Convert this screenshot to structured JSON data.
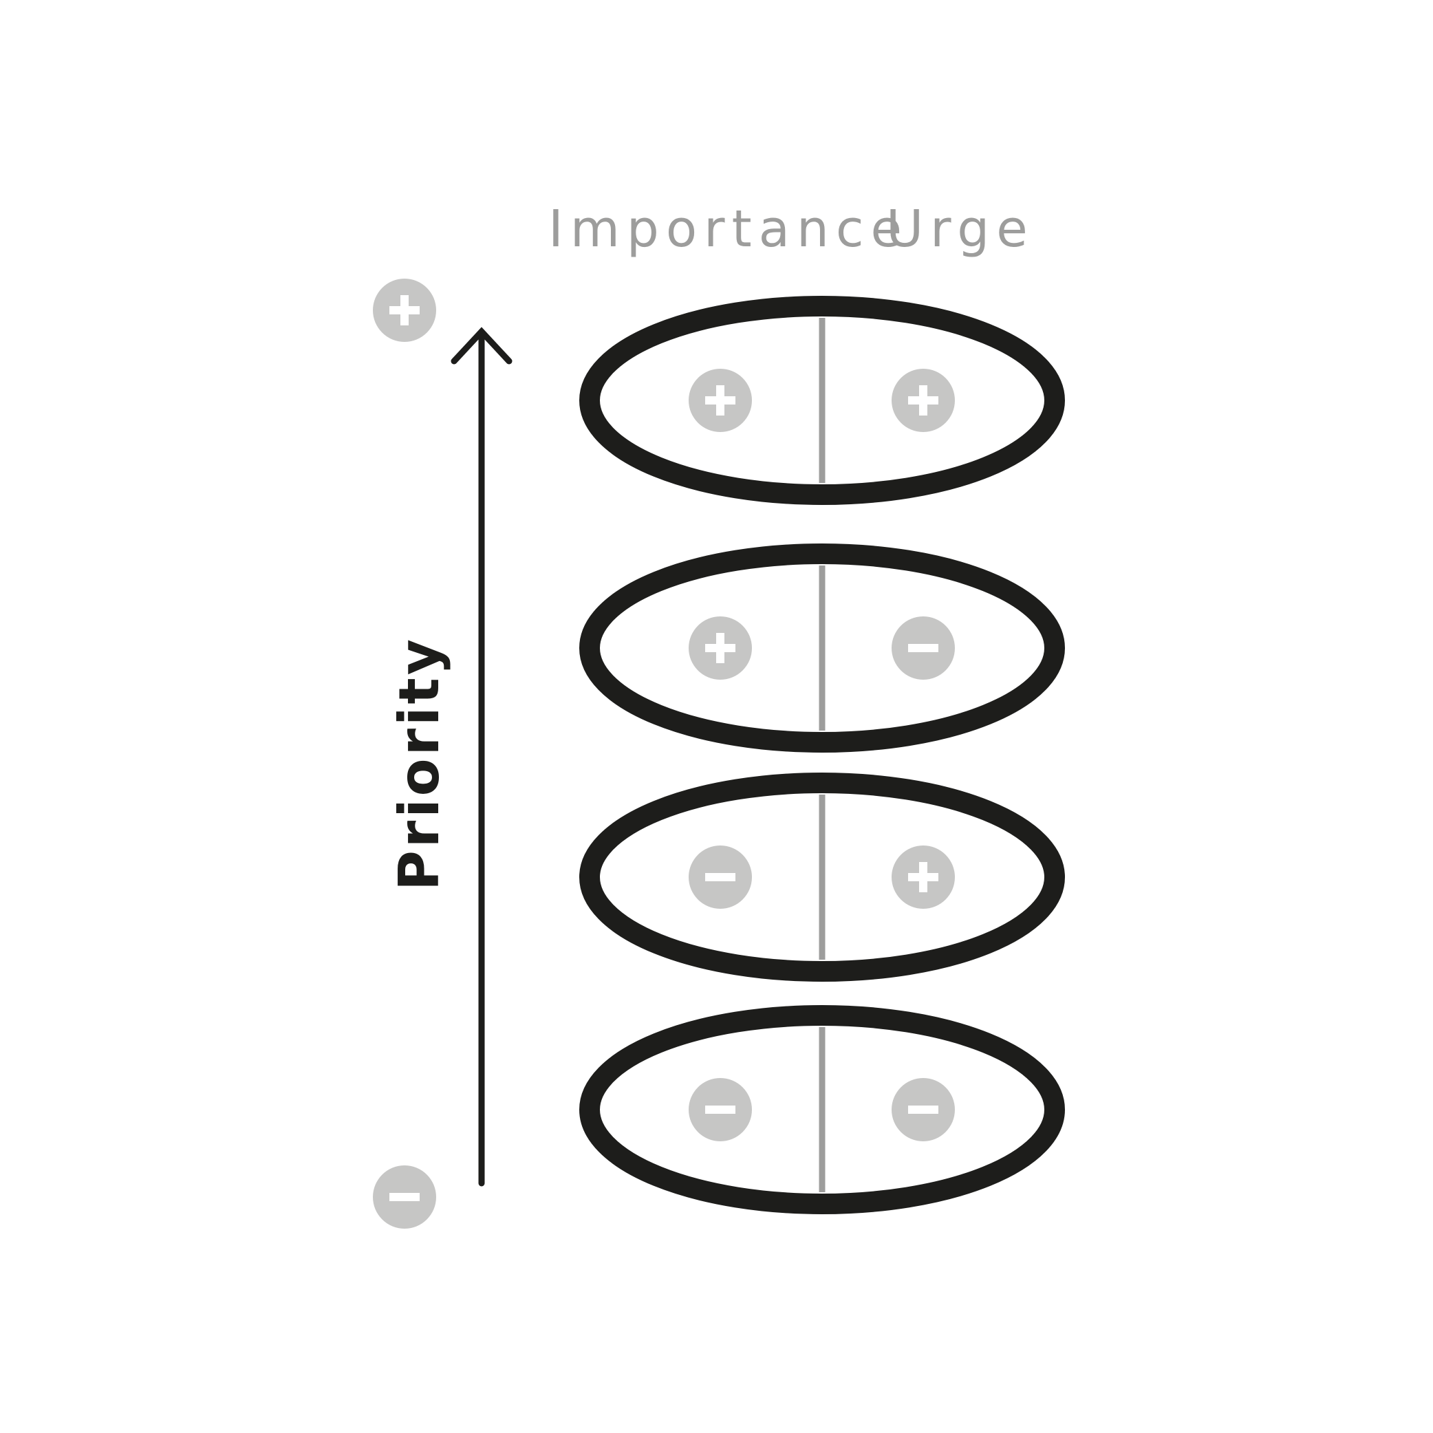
{
  "header": {
    "left_label": "Importance",
    "right_label": "Urge"
  },
  "axis": {
    "label": "Priority",
    "top_badge": "plus",
    "bottom_badge": "minus"
  },
  "rows": [
    {
      "importance": "plus",
      "urge": "plus"
    },
    {
      "importance": "plus",
      "urge": "minus"
    },
    {
      "importance": "minus",
      "urge": "plus"
    },
    {
      "importance": "minus",
      "urge": "minus"
    }
  ],
  "colors": {
    "outline": "#1d1d1b",
    "divider": "#9d9d9c",
    "badge": "#c6c6c5",
    "header_text": "#9d9d9c"
  }
}
